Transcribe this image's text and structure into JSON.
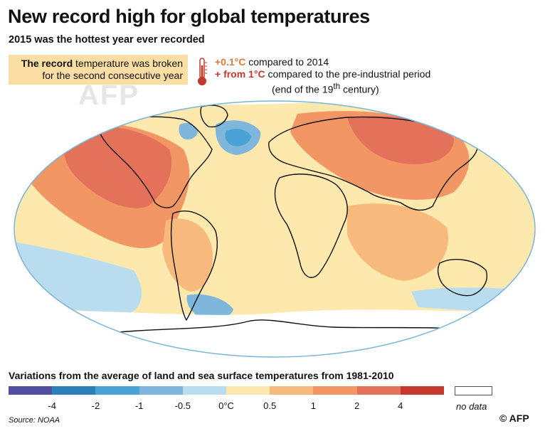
{
  "header": {
    "title": "New record high for global temperatures",
    "subtitle": "2015 was the hottest year ever recorded"
  },
  "record_box": {
    "strong": "The record",
    "line1_rest": " temperature was broken",
    "line2": "for the second consecutive year"
  },
  "facts": {
    "f1_value": "+0.1°C",
    "f1_text": " compared to 2014",
    "f2_value": "+ from 1°C",
    "f2_text": " compared to the pre-industrial period",
    "f2_note_a": "(end of the 19",
    "f2_note_sup": "th",
    "f2_note_b": " century)"
  },
  "watermark": "AFP",
  "icons": {
    "thermometer": "thermometer-icon"
  },
  "legend": {
    "title": "Variations from the average of land and sea surface temperatures from 1981-2010",
    "colors": [
      "#524fa1",
      "#2c7fb8",
      "#4aa3d6",
      "#7fb6dc",
      "#b9dcee",
      "#fde9ae",
      "#f7b97c",
      "#f29664",
      "#e4725a",
      "#c63a2e"
    ],
    "ticks": [
      "-4",
      "-2",
      "-1",
      "-0.5",
      "0°C",
      "0.5",
      "1",
      "2",
      "4"
    ],
    "no_data_label": "no data"
  },
  "footer": {
    "source": "Source: NOAA",
    "credit": "© AFP"
  }
}
